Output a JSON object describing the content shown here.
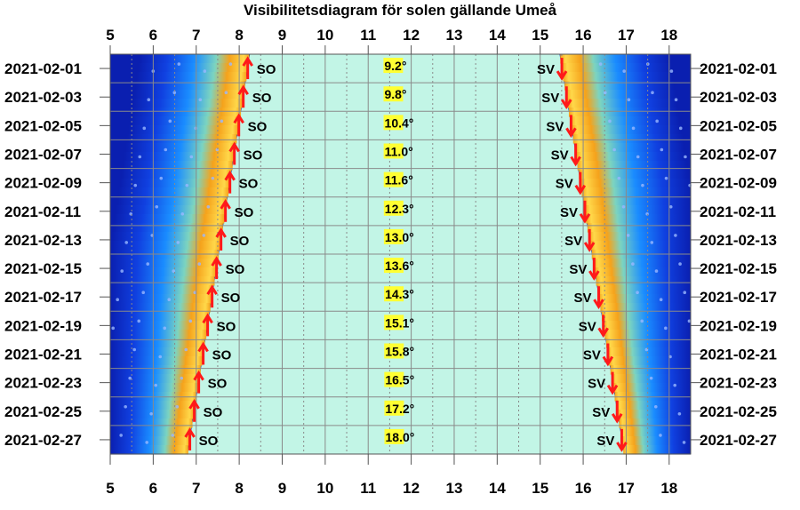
{
  "chart_data": {
    "type": "visibility-diagram",
    "title": "Visibilitetsdiagram för solen gällande Umeå",
    "x_ticks": [
      5,
      6,
      7,
      8,
      9,
      10,
      11,
      12,
      13,
      14,
      15,
      16,
      17,
      18
    ],
    "xlim": [
      5,
      18.5
    ],
    "grid": true,
    "dates": [
      "2021-02-01",
      "2021-02-03",
      "2021-02-05",
      "2021-02-07",
      "2021-02-09",
      "2021-02-11",
      "2021-02-13",
      "2021-02-15",
      "2021-02-17",
      "2021-02-19",
      "2021-02-21",
      "2021-02-23",
      "2021-02-25",
      "2021-02-27"
    ],
    "rise_label": "SO",
    "set_label": "SV",
    "max_elevation": [
      "9.2°",
      "9.8°",
      "10.4°",
      "11.0°",
      "11.6°",
      "12.3°",
      "13.0°",
      "13.6°",
      "14.3°",
      "15.1°",
      "15.8°",
      "16.5°",
      "17.2°",
      "18.0°"
    ],
    "sunrise_first_last": [
      8.25,
      6.8
    ],
    "sunset_first_last": [
      15.45,
      16.95
    ],
    "colors": {
      "day": "#c2f5e6",
      "twilight_orange": "#f5a21b",
      "twilight_yellow": "#ffd84a",
      "twilight_blue": "#1a8cff",
      "night": "#0a1fb0",
      "arrow": "#ff1a1a",
      "elevation_highlight": "#ffff33",
      "grid": "#8a8a8a"
    },
    "series": [
      {
        "name": "SO"
      },
      {
        "name": "SV"
      }
    ]
  }
}
